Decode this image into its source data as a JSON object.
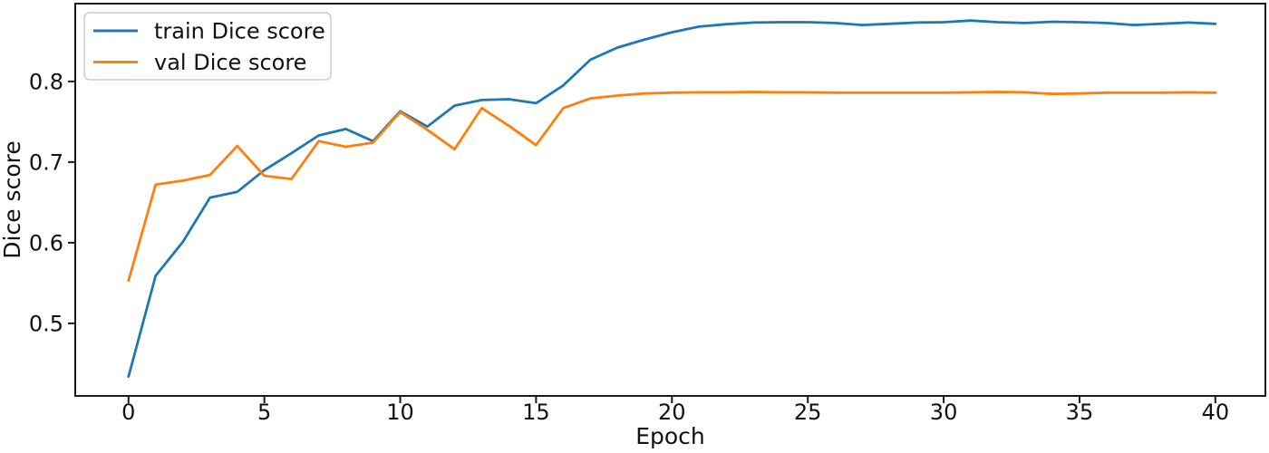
{
  "figure": {
    "background": "#ffffff",
    "spine_color": "#1a1a1a",
    "text_color": "#111111"
  },
  "legend": {
    "entries": [
      {
        "label": "train Dice score",
        "color": "#1f77b4"
      },
      {
        "label": "val Dice score",
        "color": "#ff7f0e"
      }
    ],
    "position": "upper left"
  },
  "chart_data": {
    "type": "line",
    "title": "",
    "xlabel": "Epoch",
    "ylabel": "Dice score",
    "grid": false,
    "legend_position": "upper left",
    "xlim": [
      -1.96,
      41.84
    ],
    "ylim": [
      0.41,
      0.8965
    ],
    "xticks": [
      0,
      5,
      10,
      15,
      20,
      25,
      30,
      35,
      40
    ],
    "yticks": [
      0.5,
      0.6,
      0.7,
      0.8
    ],
    "x": [
      0,
      1,
      2,
      3,
      4,
      5,
      6,
      7,
      8,
      9,
      10,
      11,
      12,
      13,
      14,
      15,
      16,
      17,
      18,
      19,
      20,
      21,
      22,
      23,
      24,
      25,
      26,
      27,
      28,
      29,
      30,
      31,
      32,
      33,
      34,
      35,
      36,
      37,
      38,
      39,
      40
    ],
    "series": [
      {
        "name": "train Dice score",
        "color": "#1f77b4",
        "values": [
          0.434,
          0.559,
          0.601,
          0.656,
          0.663,
          0.69,
          0.711,
          0.733,
          0.741,
          0.726,
          0.763,
          0.744,
          0.77,
          0.777,
          0.778,
          0.773,
          0.795,
          0.827,
          0.842,
          0.852,
          0.861,
          0.868,
          0.871,
          0.873,
          0.8735,
          0.8735,
          0.8725,
          0.87,
          0.8715,
          0.873,
          0.8735,
          0.8755,
          0.8735,
          0.8725,
          0.874,
          0.8735,
          0.8725,
          0.87,
          0.8715,
          0.873,
          0.8715
        ]
      },
      {
        "name": "val Dice score",
        "color": "#ff7f0e",
        "values": [
          0.553,
          0.672,
          0.677,
          0.684,
          0.72,
          0.683,
          0.679,
          0.726,
          0.719,
          0.724,
          0.762,
          0.74,
          0.716,
          0.767,
          0.745,
          0.721,
          0.767,
          0.779,
          0.7825,
          0.785,
          0.786,
          0.7865,
          0.7865,
          0.787,
          0.7865,
          0.7865,
          0.786,
          0.786,
          0.786,
          0.786,
          0.786,
          0.7865,
          0.787,
          0.7865,
          0.7845,
          0.785,
          0.786,
          0.786,
          0.786,
          0.7865,
          0.786
        ]
      }
    ]
  }
}
